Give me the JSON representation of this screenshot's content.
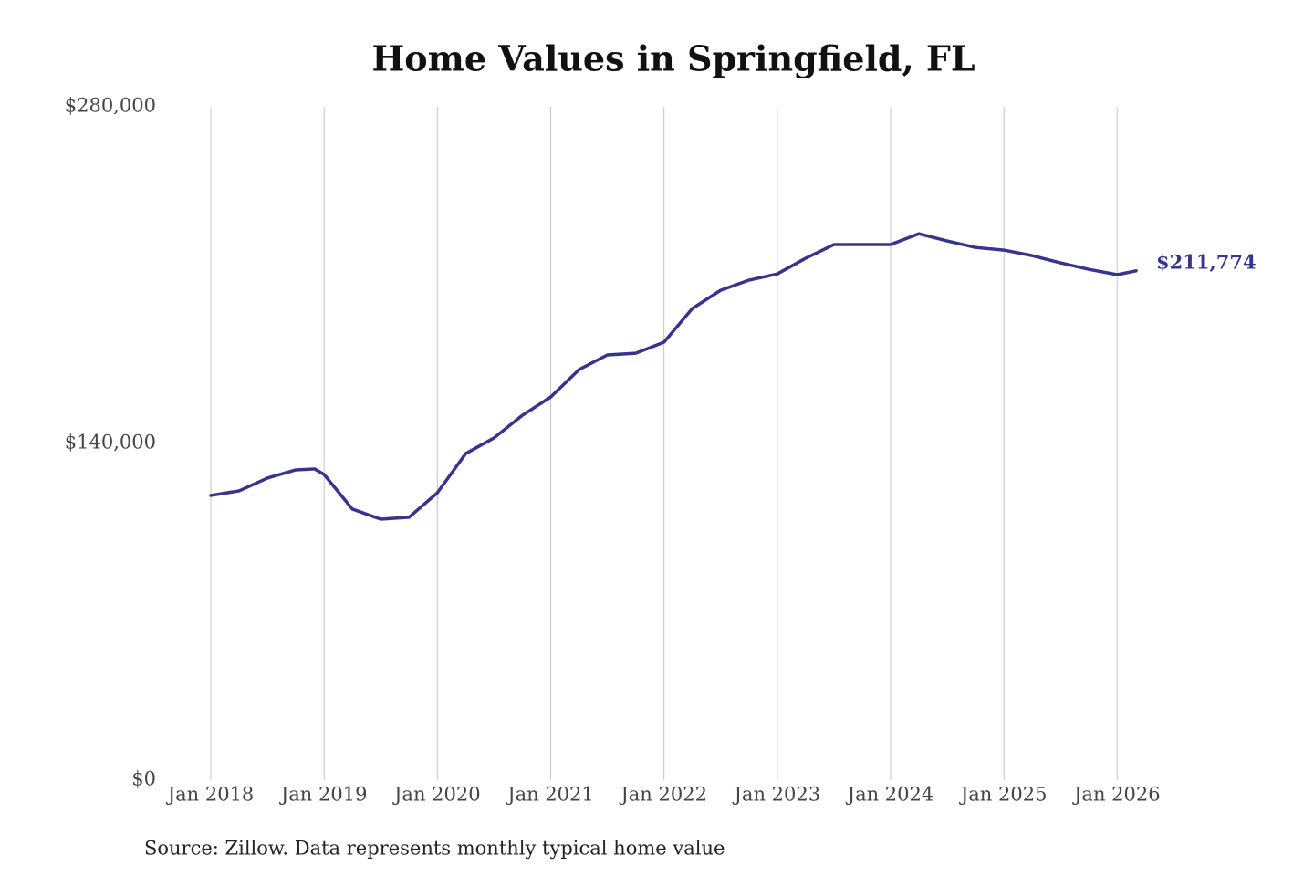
{
  "chart_data": {
    "type": "line",
    "title": "Home Values in Springfield, FL",
    "source": "Source: Zillow. Data represents monthly typical home value",
    "x": [
      "2018-01",
      "2018-04",
      "2018-07",
      "2018-10",
      "2018-12",
      "2019-01",
      "2019-04",
      "2019-07",
      "2019-10",
      "2020-01",
      "2020-04",
      "2020-07",
      "2020-10",
      "2021-01",
      "2021-04",
      "2021-07",
      "2021-10",
      "2022-01",
      "2022-04",
      "2022-07",
      "2022-10",
      "2023-01",
      "2023-04",
      "2023-07",
      "2023-10",
      "2024-01",
      "2024-04",
      "2024-07",
      "2024-10",
      "2025-01",
      "2025-04",
      "2025-07",
      "2025-10",
      "2026-01",
      "2026-03"
    ],
    "series": [
      {
        "name": "Home value",
        "color": "#36348f",
        "values": [
          118400,
          120300,
          125600,
          129000,
          129400,
          127100,
          112700,
          108500,
          109300,
          119500,
          135800,
          142300,
          151700,
          159300,
          170700,
          176800,
          177500,
          182100,
          196100,
          203700,
          207900,
          210500,
          217000,
          222700,
          222700,
          222700,
          227200,
          224200,
          221500,
          220400,
          218100,
          215100,
          212400,
          210200,
          211774
        ],
        "value_labels": [
          null,
          null,
          null,
          null,
          null,
          null,
          null,
          null,
          null,
          null,
          null,
          null,
          null,
          null,
          null,
          null,
          null,
          null,
          null,
          null,
          null,
          null,
          null,
          null,
          null,
          null,
          null,
          null,
          null,
          null,
          null,
          null,
          null,
          null,
          "$211,774"
        ]
      }
    ],
    "xlim": [
      "2018-01",
      "2026-03"
    ],
    "xticks": [
      {
        "value": "2018-01",
        "label": "Jan 2018"
      },
      {
        "value": "2019-01",
        "label": "Jan 2019"
      },
      {
        "value": "2020-01",
        "label": "Jan 2020"
      },
      {
        "value": "2021-01",
        "label": "Jan 2021"
      },
      {
        "value": "2022-01",
        "label": "Jan 2022"
      },
      {
        "value": "2023-01",
        "label": "Jan 2023"
      },
      {
        "value": "2024-01",
        "label": "Jan 2024"
      },
      {
        "value": "2025-01",
        "label": "Jan 2025"
      },
      {
        "value": "2026-01",
        "label": "Jan 2026"
      }
    ],
    "ylim": [
      0,
      280000
    ],
    "yticks": [
      {
        "value": 0,
        "label": "$0"
      },
      {
        "value": 140000,
        "label": "$140,000"
      },
      {
        "value": 280000,
        "label": "$280,000"
      }
    ],
    "grid": "x"
  }
}
